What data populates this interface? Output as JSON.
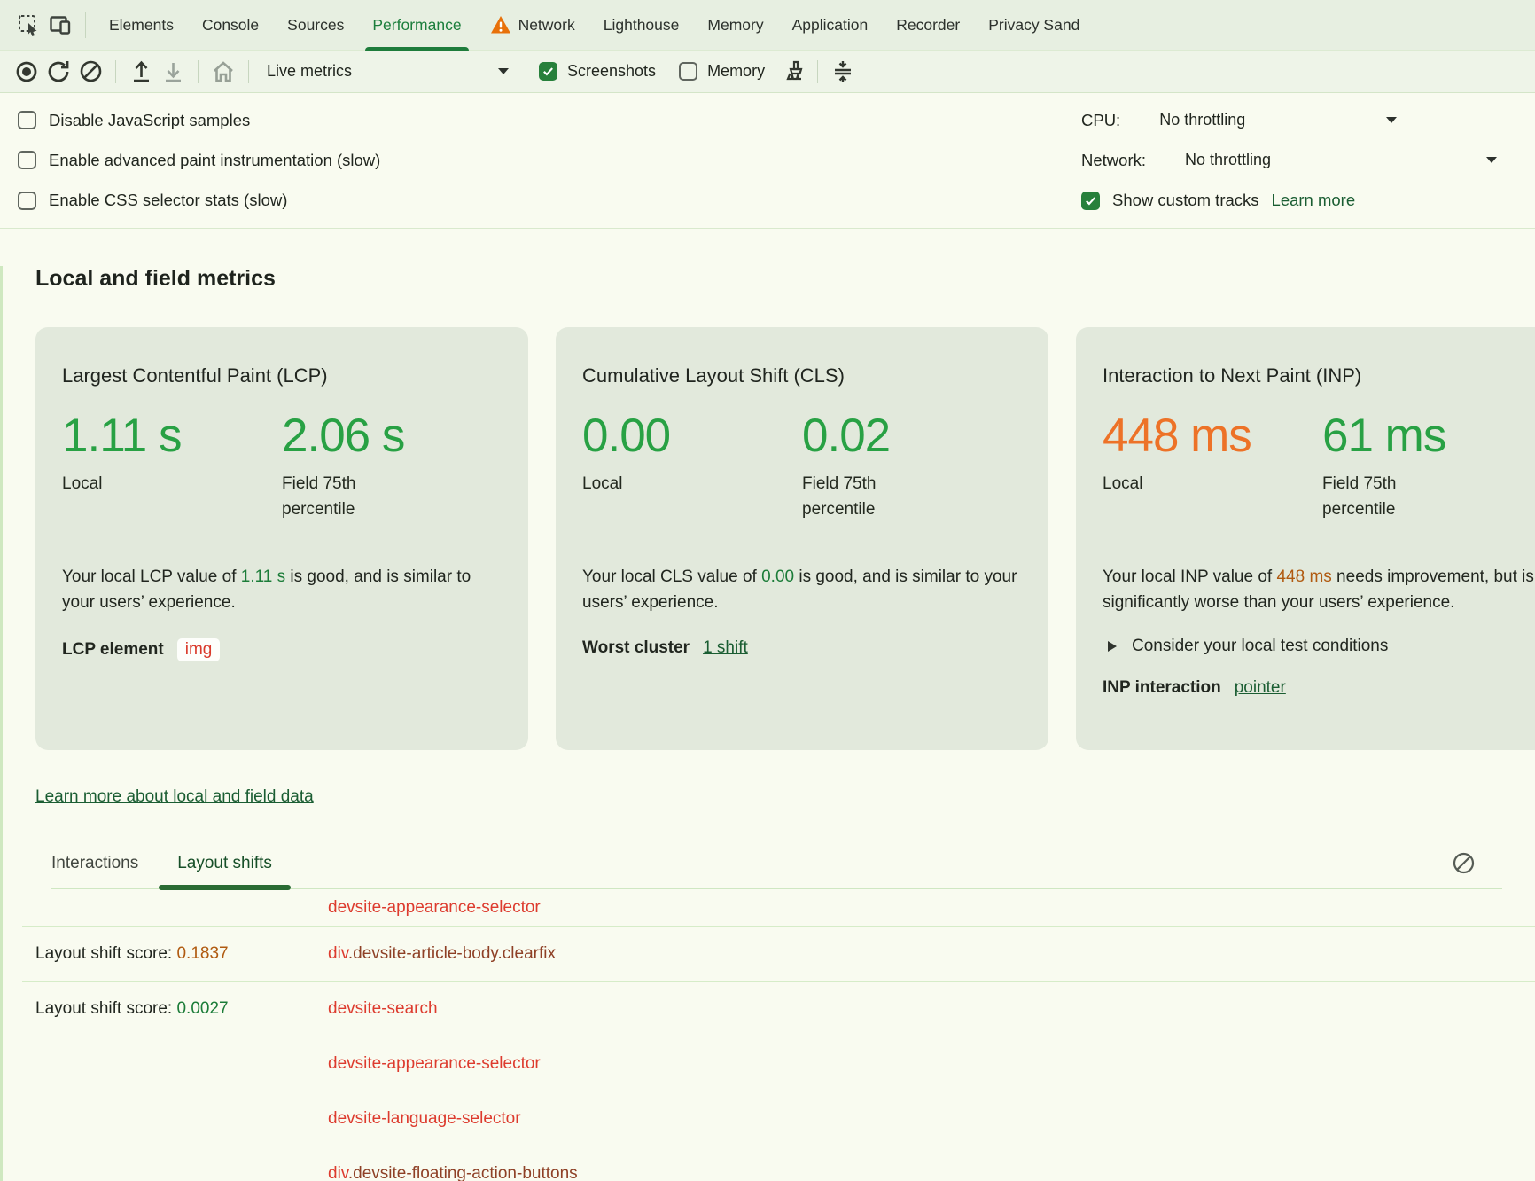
{
  "tabbar": {
    "tabs": [
      {
        "label": "Elements"
      },
      {
        "label": "Console"
      },
      {
        "label": "Sources"
      },
      {
        "label": "Performance"
      },
      {
        "label": "Network"
      },
      {
        "label": "Lighthouse"
      },
      {
        "label": "Memory"
      },
      {
        "label": "Application"
      },
      {
        "label": "Recorder"
      },
      {
        "label": "Privacy Sand"
      }
    ],
    "active_tab": "Performance"
  },
  "toolbar": {
    "live_metrics": "Live metrics",
    "screenshots": "Screenshots",
    "memory": "Memory"
  },
  "settings": {
    "checkboxes": [
      {
        "label": "Disable JavaScript samples",
        "checked": false
      },
      {
        "label": "Enable advanced paint instrumentation (slow)",
        "checked": false
      },
      {
        "label": "Enable CSS selector stats (slow)",
        "checked": false
      }
    ],
    "cpu_label": "CPU:",
    "cpu_value": "No throttling",
    "network_label": "Network:",
    "network_value": "No throttling",
    "custom_tracks_label": "Show custom tracks",
    "custom_tracks_checked": true,
    "learn_more": "Learn more"
  },
  "metrics": {
    "heading": "Local and field metrics",
    "cards": [
      {
        "title": "Largest Contentful Paint (LCP)",
        "local_value": "1.11 s",
        "local_label": "Local",
        "field_value": "2.06 s",
        "field_label": "Field 75th percentile",
        "desc": [
          {
            "t": "Your local LCP value of "
          },
          {
            "t": "1.11 s",
            "c": "green"
          },
          {
            "t": " is good, and is similar to your users’ experience."
          }
        ],
        "footer_label": "LCP element",
        "footer_value": "img"
      },
      {
        "title": "Cumulative Layout Shift (CLS)",
        "local_value": "0.00",
        "local_label": "Local",
        "field_value": "0.02",
        "field_label": "Field 75th percentile",
        "desc": [
          {
            "t": "Your local CLS value of "
          },
          {
            "t": "0.00",
            "c": "green"
          },
          {
            "t": " is good, and is similar to your users’ experience."
          }
        ],
        "footer_label": "Worst cluster",
        "footer_link": "1 shift"
      },
      {
        "title": "Interaction to Next Paint (INP)",
        "local_value": "448 ms",
        "local_label": "Local",
        "field_value": "61 ms",
        "field_label": "Field 75th percentile",
        "desc": [
          {
            "t": "Your local INP value of "
          },
          {
            "t": "448 ms",
            "c": "orange"
          },
          {
            "t": " needs improvement, but is significantly worse than your users’ experience."
          }
        ],
        "disclosure": "Consider your local test conditions",
        "footer_label": "INP interaction",
        "footer_link": "pointer"
      }
    ],
    "learn_more_link": "Learn more about local and field data"
  },
  "log": {
    "tabs": [
      {
        "label": "Interactions"
      },
      {
        "label": "Layout shifts"
      }
    ],
    "active_tab": "Layout shifts",
    "rows": [
      {
        "score": [],
        "node": [
          {
            "t": "devsite-appearance-selector",
            "c": "red"
          }
        ]
      },
      {
        "score": [
          {
            "t": "Layout shift score: "
          },
          {
            "t": "0.1837",
            "c": "orange"
          }
        ],
        "node": [
          {
            "t": "div",
            "c": "red"
          },
          {
            "t": ".devsite-article-body.clearfix",
            "c": "brown"
          }
        ]
      },
      {
        "score": [
          {
            "t": "Layout shift score: "
          },
          {
            "t": "0.0027",
            "c": "green"
          }
        ],
        "node": [
          {
            "t": "devsite-search",
            "c": "red"
          }
        ]
      },
      {
        "score": [],
        "node": [
          {
            "t": "devsite-appearance-selector",
            "c": "red"
          }
        ]
      },
      {
        "score": [],
        "node": [
          {
            "t": "devsite-language-selector",
            "c": "red"
          }
        ]
      },
      {
        "score": [],
        "node": [
          {
            "t": "div",
            "c": "red"
          },
          {
            "t": ".devsite-floating-action-buttons",
            "c": "brown"
          }
        ]
      }
    ]
  },
  "colors": {
    "accent_green": "#1e7c3b",
    "value_good_green": "#28a144",
    "value_poor_orange": "#ed7227",
    "link_green": "#1a5d32",
    "node_red": "#dd3b2e",
    "node_brown": "#8e4026",
    "inline_orange": "#b05a10",
    "inline_green": "#1b7c38",
    "warning_orange": "#e8710a",
    "card_background": "#e2e9dc",
    "bar_background": "#e7efe1"
  },
  "icons": {
    "inspect": "inspect-cursor",
    "device_toolbar": "device-toolbar",
    "record": "record-circle",
    "reload": "reload-arrow",
    "clear": "circle-slash",
    "upload": "arrow-up-tray",
    "download": "arrow-down-tray",
    "home": "house",
    "gc": "broom",
    "fit": "collapse-arrows",
    "caret_down": "triangle-down",
    "block": "circle-slash"
  }
}
